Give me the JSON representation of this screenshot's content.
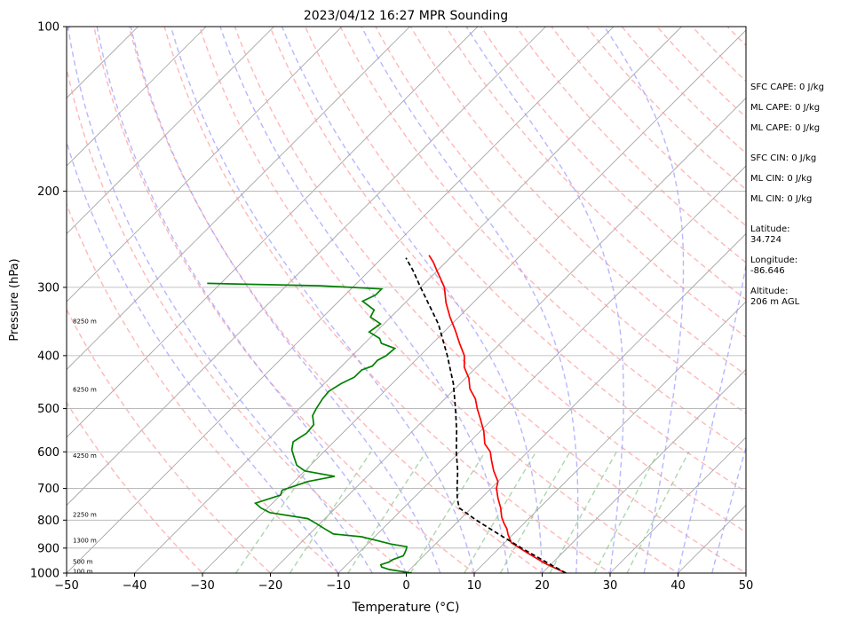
{
  "chart_data": {
    "type": "line",
    "title": "2023/04/12 16:27 MPR Sounding",
    "xlabel": "Temperature (°C)",
    "ylabel": "Pressure (hPa)",
    "xlim": [
      -50,
      50
    ],
    "ylim": [
      1000,
      100
    ],
    "y_scale": "log",
    "x_ticks": [
      -50,
      -40,
      -30,
      -20,
      -10,
      0,
      10,
      20,
      30,
      40,
      50
    ],
    "y_ticks": [
      1000,
      900,
      800,
      700,
      600,
      500,
      400,
      300,
      200,
      100
    ],
    "grid": true,
    "background_lines": {
      "isotherms_color": "#a0a0a0",
      "dry_adiabats_color": "#ff9999",
      "moist_adiabats_color": "#9999ff",
      "mixing_ratio_color": "#99cc99"
    },
    "height_labels": [
      {
        "label": "100 m",
        "pressure": 990
      },
      {
        "label": "500 m",
        "pressure": 950
      },
      {
        "label": "1300 m",
        "pressure": 870
      },
      {
        "label": "2250 m",
        "pressure": 780
      },
      {
        "label": "4250 m",
        "pressure": 608
      },
      {
        "label": "6250 m",
        "pressure": 460
      },
      {
        "label": "8250 m",
        "pressure": 345
      }
    ],
    "series": [
      {
        "color": "#ff0000",
        "points": [
          {
            "p": 1000,
            "t": 23.5
          },
          {
            "p": 960,
            "t": 19
          },
          {
            "p": 920,
            "t": 15
          },
          {
            "p": 880,
            "t": 11
          },
          {
            "p": 850,
            "t": 9.3
          },
          {
            "p": 830,
            "t": 8.3
          },
          {
            "p": 810,
            "t": 7
          },
          {
            "p": 790,
            "t": 5.8
          },
          {
            "p": 760,
            "t": 4.3
          },
          {
            "p": 730,
            "t": 2.5
          },
          {
            "p": 700,
            "t": 0.8
          },
          {
            "p": 680,
            "t": 0
          },
          {
            "p": 650,
            "t": -2.2
          },
          {
            "p": 620,
            "t": -4.2
          },
          {
            "p": 600,
            "t": -5.5
          },
          {
            "p": 580,
            "t": -7.5
          },
          {
            "p": 550,
            "t": -9.5
          },
          {
            "p": 520,
            "t": -12
          },
          {
            "p": 500,
            "t": -13.8
          },
          {
            "p": 480,
            "t": -15.5
          },
          {
            "p": 460,
            "t": -17.8
          },
          {
            "p": 440,
            "t": -19.5
          },
          {
            "p": 420,
            "t": -21.8
          },
          {
            "p": 400,
            "t": -23.5
          },
          {
            "p": 380,
            "t": -26
          },
          {
            "p": 360,
            "t": -28.5
          },
          {
            "p": 340,
            "t": -31.3
          },
          {
            "p": 320,
            "t": -34
          },
          {
            "p": 300,
            "t": -36.5
          },
          {
            "p": 290,
            "t": -38.2
          },
          {
            "p": 280,
            "t": -40
          },
          {
            "p": 270,
            "t": -41.8
          },
          {
            "p": 262,
            "t": -43.5
          }
        ]
      },
      {
        "color": "#008000",
        "points": [
          {
            "p": 1000,
            "t": 0.8
          },
          {
            "p": 985,
            "t": -3
          },
          {
            "p": 975,
            "t": -4.5
          },
          {
            "p": 965,
            "t": -5
          },
          {
            "p": 955,
            "t": -4.2
          },
          {
            "p": 945,
            "t": -4
          },
          {
            "p": 930,
            "t": -3
          },
          {
            "p": 918,
            "t": -3.2
          },
          {
            "p": 905,
            "t": -3.5
          },
          {
            "p": 895,
            "t": -3.8
          },
          {
            "p": 885,
            "t": -6.5
          },
          {
            "p": 870,
            "t": -9.5
          },
          {
            "p": 858,
            "t": -12
          },
          {
            "p": 848,
            "t": -16.5
          },
          {
            "p": 830,
            "t": -18.5
          },
          {
            "p": 812,
            "t": -20.5
          },
          {
            "p": 795,
            "t": -22.5
          },
          {
            "p": 775,
            "t": -29
          },
          {
            "p": 760,
            "t": -31
          },
          {
            "p": 745,
            "t": -32.5
          },
          {
            "p": 735,
            "t": -31.5
          },
          {
            "p": 720,
            "t": -30
          },
          {
            "p": 705,
            "t": -30.5
          },
          {
            "p": 695,
            "t": -29.5
          },
          {
            "p": 680,
            "t": -28
          },
          {
            "p": 665,
            "t": -24.8
          },
          {
            "p": 650,
            "t": -30
          },
          {
            "p": 635,
            "t": -32
          },
          {
            "p": 615,
            "t": -33.5
          },
          {
            "p": 595,
            "t": -35
          },
          {
            "p": 575,
            "t": -36
          },
          {
            "p": 555,
            "t": -35.3
          },
          {
            "p": 535,
            "t": -35.5
          },
          {
            "p": 515,
            "t": -37
          },
          {
            "p": 500,
            "t": -37.5
          },
          {
            "p": 480,
            "t": -38
          },
          {
            "p": 465,
            "t": -38.2
          },
          {
            "p": 450,
            "t": -37.5
          },
          {
            "p": 438,
            "t": -36.5
          },
          {
            "p": 425,
            "t": -36.5
          },
          {
            "p": 418,
            "t": -35.5
          },
          {
            "p": 408,
            "t": -35.6
          },
          {
            "p": 400,
            "t": -35
          },
          {
            "p": 388,
            "t": -34.8
          },
          {
            "p": 380,
            "t": -37.5
          },
          {
            "p": 372,
            "t": -38.5
          },
          {
            "p": 362,
            "t": -41
          },
          {
            "p": 350,
            "t": -40.5
          },
          {
            "p": 340,
            "t": -43
          },
          {
            "p": 330,
            "t": -43.5
          },
          {
            "p": 318,
            "t": -46.5
          },
          {
            "p": 310,
            "t": -45.5
          },
          {
            "p": 302,
            "t": -45.5
          },
          {
            "p": 298,
            "t": -55
          },
          {
            "p": 295,
            "t": -72
          }
        ]
      },
      {
        "color": "#000000",
        "dashed": true,
        "points": [
          {
            "p": 1000,
            "t": 23.5
          },
          {
            "p": 950,
            "t": 18.5
          },
          {
            "p": 900,
            "t": 13.3
          },
          {
            "p": 850,
            "t": 8
          },
          {
            "p": 800,
            "t": 2.5
          },
          {
            "p": 760,
            "t": -1.8
          },
          {
            "p": 730,
            "t": -3.5
          },
          {
            "p": 700,
            "t": -5
          },
          {
            "p": 650,
            "t": -7.5
          },
          {
            "p": 600,
            "t": -10.5
          },
          {
            "p": 550,
            "t": -13.5
          },
          {
            "p": 500,
            "t": -17
          },
          {
            "p": 450,
            "t": -21
          },
          {
            "p": 400,
            "t": -26
          },
          {
            "p": 350,
            "t": -32
          },
          {
            "p": 300,
            "t": -40
          },
          {
            "p": 280,
            "t": -43.5
          },
          {
            "p": 265,
            "t": -46.5
          }
        ]
      }
    ]
  },
  "annotations": {
    "sfc_cape": "SFC CAPE: 0 J/kg",
    "ml_cape_1": "ML CAPE: 0 J/kg",
    "ml_cape_2": "ML CAPE: 0 J/kg",
    "sfc_cin": "SFC CIN: 0 J/kg",
    "ml_cin_1": "ML CIN: 0 J/kg",
    "ml_cin_2": "ML CIN: 0 J/kg",
    "latitude": "Latitude:\n34.724",
    "longitude": "Longitude:\n-86.646",
    "altitude": "Altitude:\n206 m AGL"
  }
}
